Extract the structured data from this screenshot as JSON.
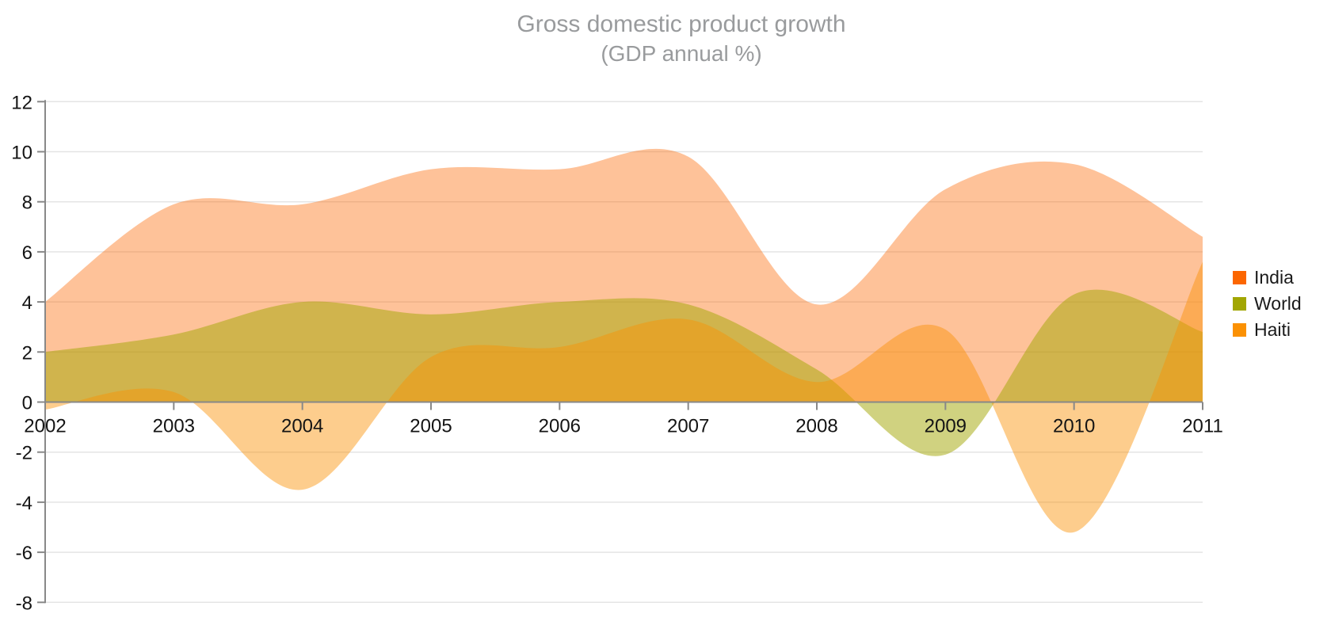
{
  "chart_data": {
    "type": "area",
    "title": "Gross domestic product growth",
    "subtitle": "(GDP annual %)",
    "x": [
      2002,
      2003,
      2004,
      2005,
      2006,
      2007,
      2008,
      2009,
      2010,
      2011
    ],
    "series": [
      {
        "name": "India",
        "color": "#FC6600",
        "fill_opacity": 0.4,
        "values": [
          4.0,
          7.9,
          7.9,
          9.3,
          9.3,
          9.8,
          3.9,
          8.5,
          9.5,
          6.6
        ]
      },
      {
        "name": "World",
        "color": "#A2A602",
        "fill_opacity": 0.5,
        "values": [
          2.0,
          2.7,
          4.0,
          3.5,
          4.0,
          3.9,
          1.3,
          -2.1,
          4.3,
          2.8
        ]
      },
      {
        "name": "Haiti",
        "color": "#FB9103",
        "fill_opacity": 0.45,
        "values": [
          -0.3,
          0.4,
          -3.5,
          1.8,
          2.2,
          3.3,
          0.8,
          2.9,
          -5.2,
          5.6
        ]
      }
    ],
    "ylim": [
      -8,
      12
    ],
    "ytick_step": 2,
    "grid": true,
    "legend_position": "right",
    "curve": "smooth-spline",
    "baseline": 0,
    "colors": {
      "axis_line": "#888888",
      "zero_line": "#888888",
      "gridline": "#e4e4e4",
      "tick_label": "#141414",
      "title_text": "#999b9d",
      "legend_text": "#1a1a1a",
      "background": "#ffffff"
    }
  }
}
